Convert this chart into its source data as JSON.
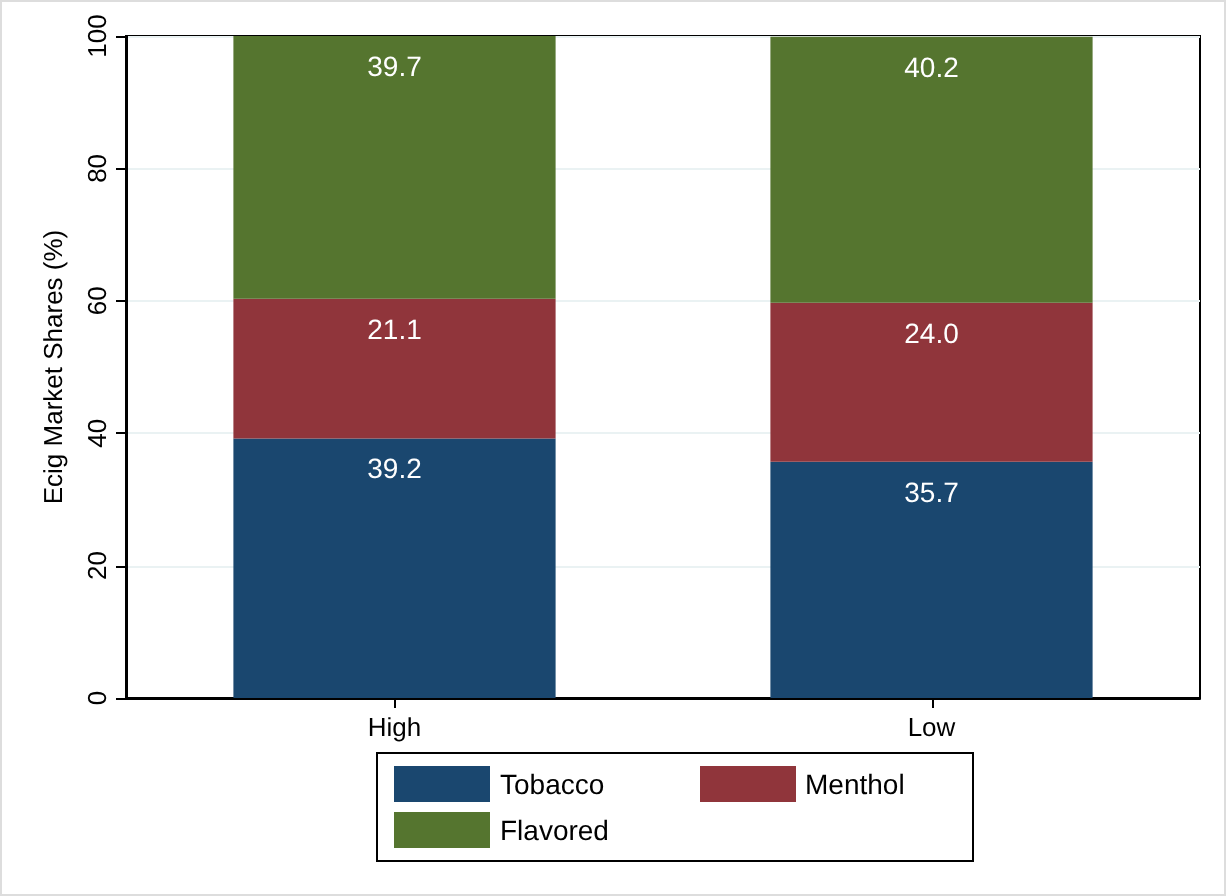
{
  "chart_data": {
    "type": "bar",
    "stacked": true,
    "ylabel": "Ecig Market Shares (%)",
    "categories": [
      "High",
      "Low"
    ],
    "series": [
      {
        "name": "Tobacco",
        "color": "#1a476f",
        "values": [
          39.2,
          35.7
        ],
        "value_labels": [
          "39.2",
          "35.7"
        ]
      },
      {
        "name": "Menthol",
        "color": "#90353b",
        "values": [
          21.1,
          24.0
        ],
        "value_labels": [
          "21.1",
          "24.0"
        ]
      },
      {
        "name": "Flavored",
        "color": "#55752f",
        "values": [
          39.7,
          40.2
        ],
        "value_labels": [
          "39.7",
          "40.2"
        ]
      }
    ],
    "ylim": [
      0,
      100
    ],
    "yticks": [
      0,
      20,
      40,
      60,
      80,
      100
    ],
    "grid": "y",
    "legend": "bottom"
  }
}
